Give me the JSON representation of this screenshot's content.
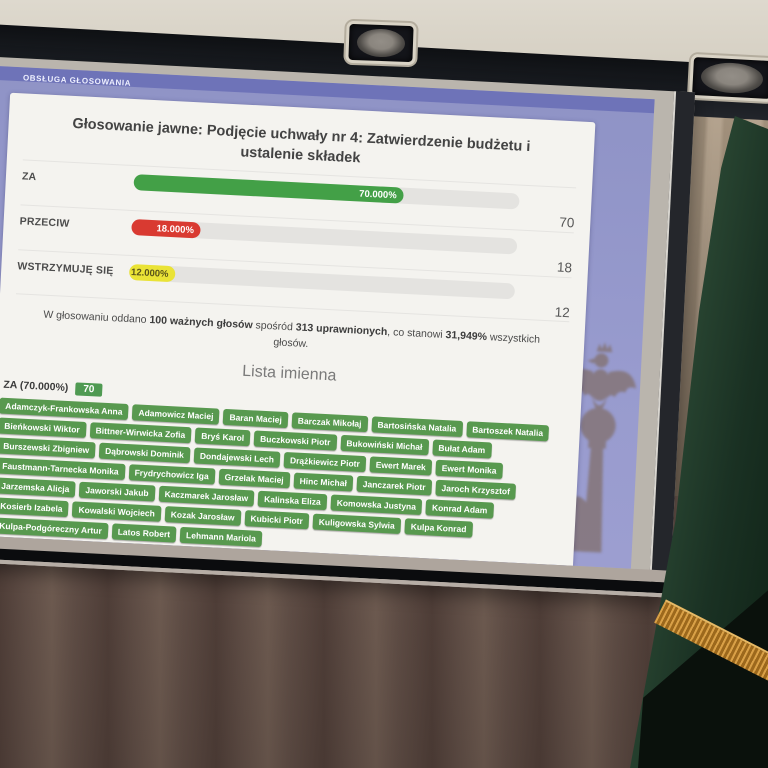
{
  "screen_header": "OBSŁUGA GŁOSOWANIA",
  "vote": {
    "title": "Głosowanie jawne: Podjęcie uchwały nr 4: Zatwierdzenie budżetu i ustalenie składek",
    "rows": [
      {
        "label": "ZA",
        "percent": 70,
        "percent_label": "70.000%",
        "count": "70",
        "color": "#43a047"
      },
      {
        "label": "PRZECIW",
        "percent": 18,
        "percent_label": "18.000%",
        "count": "18",
        "color": "#d93a31"
      },
      {
        "label": "WSTRZYMUJĘ SIĘ",
        "percent": 12,
        "percent_label": "12.000%",
        "count": "12",
        "color": "#eae336"
      }
    ],
    "summary": {
      "parts": [
        {
          "t": "W głosowaniu oddano ",
          "b": false
        },
        {
          "t": "100 ważnych głosów",
          "b": true
        },
        {
          "t": " spośród ",
          "b": false
        },
        {
          "t": "313 uprawnionych",
          "b": true
        },
        {
          "t": ", co stanowi ",
          "b": false
        },
        {
          "t": "31,949%",
          "b": true
        },
        {
          "t": " wszystkich głosów.",
          "b": false
        }
      ]
    },
    "list_heading": "Lista imienna",
    "group": {
      "label": "ZA (70.000%)",
      "count": "70"
    },
    "names": [
      "Adamczyk-Frankowska Anna",
      "Adamowicz Maciej",
      "Baran Maciej",
      "Barczak Mikołaj",
      "Bartosińska Natalia",
      "Bartoszek Natalia",
      "Bieńkowski Wiktor",
      "Bittner-Wirwicka Zofia",
      "Bryś Karol",
      "Buczkowski Piotr",
      "Bukowiński Michał",
      "Bułat Adam",
      "Burszewski Zbigniew",
      "Dąbrowski Dominik",
      "Dondajewski Lech",
      "Drążkiewicz Piotr",
      "Ewert Marek",
      "Ewert Monika",
      "Faustmann-Tarnecka Monika",
      "Frydrychowicz Iga",
      "Grzelak Maciej",
      "Hinc Michał",
      "Janczarek Piotr",
      "Jaroch Krzysztof",
      "Jarzemska Alicja",
      "Jaworski Jakub",
      "Kaczmarek Jarosław",
      "Kalinska Eliza",
      "Komowska Justyna",
      "Konrad Adam",
      "Kosierb Izabela",
      "Kowalski Wojciech",
      "Kozak Jarosław",
      "Kubicki Piotr",
      "Kuligowska Sylwia",
      "Kulpa Konrad",
      "Kulpa-Podgóreczny Artur",
      "Latos Robert",
      "Lehmann Mariola"
    ]
  },
  "chart_data": {
    "type": "bar",
    "orientation": "horizontal",
    "title": "Głosowanie jawne: Podjęcie uchwały nr 4: Zatwierdzenie budżetu i ustalenie składek",
    "categories": [
      "ZA",
      "PRZECIW",
      "WSTRZYMUJĘ SIĘ"
    ],
    "values": [
      70,
      18,
      12
    ],
    "value_labels": [
      "70.000%",
      "18.000%",
      "12.000%"
    ],
    "counts": [
      70,
      18,
      12
    ],
    "xlim": [
      0,
      100
    ],
    "bar_colors": [
      "#43a047",
      "#d93a31",
      "#eae336"
    ],
    "valid_votes": 100,
    "eligible_voters": 313,
    "turnout_percent": "31,949%"
  },
  "scene_colors": {
    "projection_background": "#9698cd",
    "header_bar": "#6e73b8",
    "badge_green": "#58994f",
    "flag_green": "#24402f",
    "fringe_gold": "#c8923a",
    "curtain_brown": "#6d5950"
  }
}
